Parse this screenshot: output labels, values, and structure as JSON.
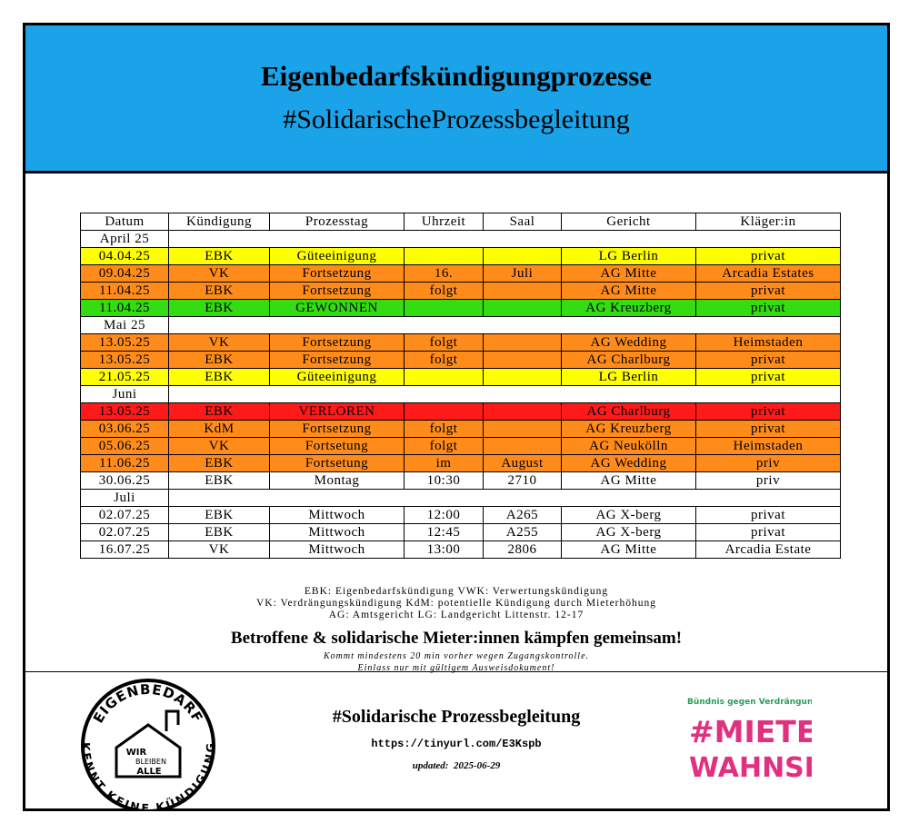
{
  "header": {
    "title": "Eigenbedarfskündigungprozesse",
    "subtitle": "#SolidarischeProzessbegleitung"
  },
  "table": {
    "columns": [
      "Datum",
      "Kündigung",
      "Prozesstag",
      "Uhrzeit",
      "Saal",
      "Gericht",
      "Kläger:in"
    ],
    "rows": [
      {
        "section": "April 25"
      },
      {
        "color": "#ffff00",
        "cells": [
          "04.04.25",
          "EBK",
          "Güteeinigung",
          null,
          null,
          "LG Berlin",
          "privat"
        ]
      },
      {
        "color": "#ff8c1a",
        "cells": [
          "09.04.25",
          "VK",
          "Fortsetzung",
          "16.",
          "Juli",
          "AG Mitte",
          "Arcadia Estates"
        ]
      },
      {
        "color": "#ff8c1a",
        "cells": [
          "11.04.25",
          "EBK",
          "Fortsetzung",
          "folgt",
          null,
          "AG Mitte",
          "privat"
        ]
      },
      {
        "color": "#33dd11",
        "cells": [
          "11.04.25",
          "EBK",
          "GEWONNEN",
          null,
          null,
          "AG Kreuzberg",
          "privat"
        ]
      },
      {
        "section": "Mai 25"
      },
      {
        "color": "#ff8c1a",
        "cells": [
          "13.05.25",
          "VK",
          "Fortsetzung",
          "folgt",
          null,
          "AG Wedding",
          "Heimstaden"
        ]
      },
      {
        "color": "#ff8c1a",
        "cells": [
          "13.05.25",
          "EBK",
          "Fortsetzung",
          "folgt",
          null,
          "AG Charlburg",
          "privat"
        ]
      },
      {
        "color": "#ffff00",
        "cells": [
          "21.05.25",
          "EBK",
          "Güteeinigung",
          null,
          null,
          "LG Berlin",
          "privat"
        ]
      },
      {
        "section": "Juni"
      },
      {
        "color": "#ff1a1a",
        "cells": [
          "13.05.25",
          "EBK",
          "VERLOREN",
          null,
          null,
          "AG Charlburg",
          "privat"
        ]
      },
      {
        "color": "#ff8c1a",
        "cells": [
          "03.06.25",
          "KdM",
          "Fortsetzung",
          "folgt",
          null,
          "AG Kreuzberg",
          "privat"
        ]
      },
      {
        "color": "#ff8c1a",
        "cells": [
          "05.06.25",
          "VK",
          "Fortsetung",
          "folgt",
          null,
          "AG Neukölln",
          "Heimstaden"
        ]
      },
      {
        "color": "#ff8c1a",
        "cells": [
          "11.06.25",
          "EBK",
          "Fortsetung",
          "im",
          "August",
          "AG Wedding",
          "priv"
        ]
      },
      {
        "color": "#ffffff",
        "cells": [
          "30.06.25",
          "EBK",
          "Montag",
          "10:30",
          "2710",
          "AG Mitte",
          "priv"
        ]
      },
      {
        "section": "Juli"
      },
      {
        "color": "#ffffff",
        "cells": [
          "02.07.25",
          "EBK",
          "Mittwoch",
          "12:00",
          "A265",
          "AG X-berg",
          "privat"
        ]
      },
      {
        "color": "#ffffff",
        "cells": [
          "02.07.25",
          "EBK",
          "Mittwoch",
          "12:45",
          "A255",
          "AG X-berg",
          "privat"
        ]
      },
      {
        "color": "#ffffff",
        "cells": [
          "16.07.25",
          "VK",
          "Mittwoch",
          "13:00",
          "2806",
          "AG Mitte",
          "Arcadia Estate"
        ]
      }
    ]
  },
  "notes": [
    "EBK: Eigenbedarfskündigung VWK: Verwertungskündigung",
    "VK: Verdrängungskündigung KdM: potentielle Kündigung durch Mieterhöhung",
    "AG: Amtsgericht LG: Landgericht Littenstr. 12-17"
  ],
  "slogan": "Betroffene & solidarische Mieter:innen kämpfen gemeinsam!",
  "hints": [
    "Kommt mindestens 20 min vorher wegen Zugangskontrolle.",
    "Einlass nur mit gültigem Ausweisdokument!"
  ],
  "footer": {
    "title": "#Solidarische Prozessbegleitung",
    "url": "https://tinyurl.com/E3Kspb",
    "updated_label": "updated:",
    "updated": "2025-06-29"
  },
  "logo_left": {
    "top": "EIGENBEDARF",
    "bottom": "KENNT KEINE KÜNDIGUNG",
    "inner": [
      "WIR",
      "BLEIBEN",
      "ALLE"
    ]
  },
  "logo_right": {
    "small": "Bündnis gegen Verdrängung und",
    "line1": "#MIETEN",
    "line2": "WAHNSINN"
  }
}
